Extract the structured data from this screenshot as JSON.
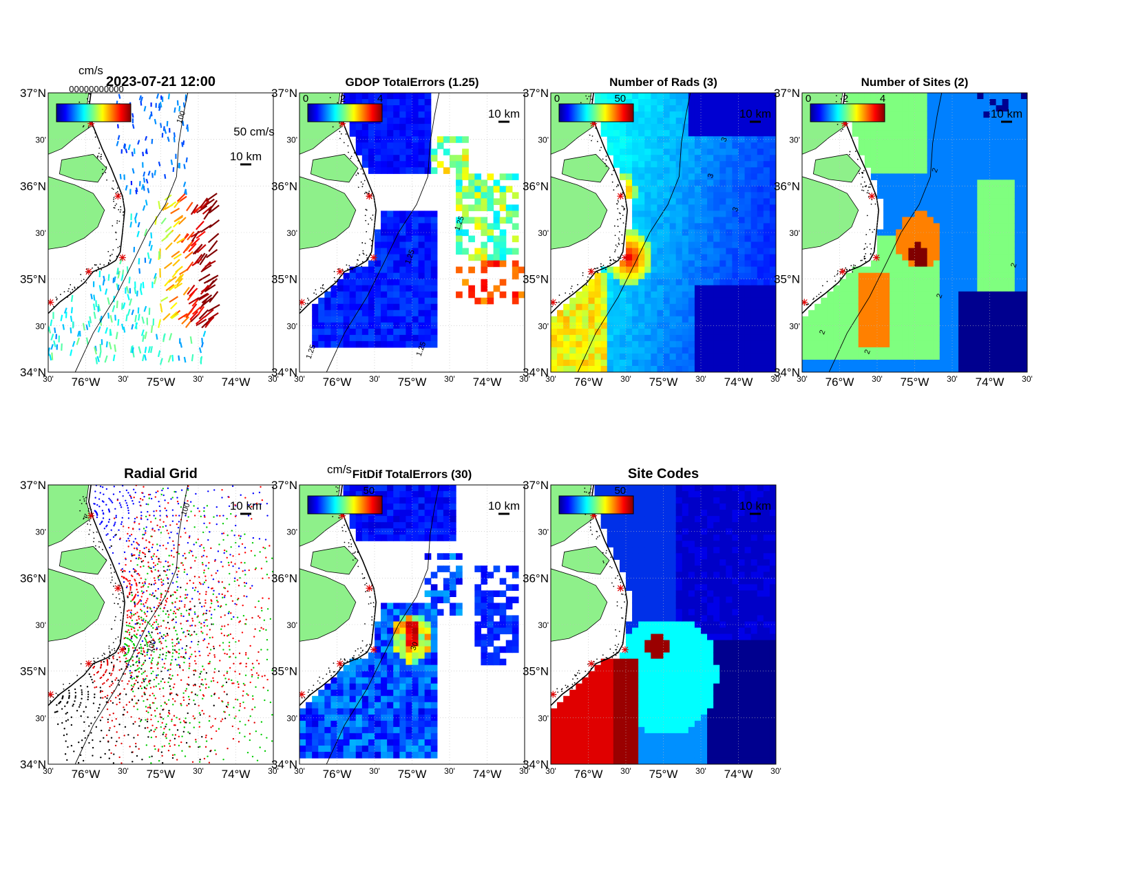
{
  "figure": {
    "panels": [
      {
        "key": "totals",
        "title": "2023-07-21 12:00",
        "colorbar_label": "cm/s",
        "colorbar_ticks": [],
        "scale_label": "50 cm/s",
        "km_label": "10 km",
        "contour_labels": [
          "100"
        ],
        "stack_text": "00000000000"
      },
      {
        "key": "gdop",
        "title": "GDOP TotalErrors (1.25)",
        "colorbar_label": "",
        "colorbar_ticks": [
          "0",
          "2",
          "4"
        ],
        "km_label": "10 km",
        "contour_labels": [
          "1.25",
          "1.25",
          "1.25",
          "1.25"
        ]
      },
      {
        "key": "rads",
        "title": "Number of Rads (3)",
        "colorbar_label": "",
        "colorbar_ticks": [
          "0",
          "50"
        ],
        "km_label": "10 km",
        "contour_labels": [
          "3",
          "3",
          "3"
        ]
      },
      {
        "key": "sites",
        "title": "Number of Sites (2)",
        "colorbar_label": "",
        "colorbar_ticks": [
          "0",
          "2",
          "4"
        ],
        "km_label": "10 km",
        "contour_labels": [
          "2",
          "2",
          "2",
          "2",
          "2"
        ]
      },
      {
        "key": "radial",
        "title": "Radial Grid",
        "colorbar_label": "",
        "colorbar_ticks": [],
        "km_label": "10 km",
        "contour_labels": [
          "100",
          "100"
        ]
      },
      {
        "key": "fitdif",
        "title": "FitDif TotalErrors (30)",
        "colorbar_label": "cm/s",
        "colorbar_ticks": [
          "50"
        ],
        "km_label": "10 km",
        "contour_labels": [
          "30"
        ]
      },
      {
        "key": "codes",
        "title": "Site Codes",
        "colorbar_label": "",
        "colorbar_ticks": [
          "50"
        ],
        "km_label": "10 km",
        "contour_labels": []
      }
    ],
    "axes": {
      "lat_ticks": [
        {
          "value": 37.0,
          "label": "37°N"
        },
        {
          "value": 36.5,
          "label": "30'"
        },
        {
          "value": 36.0,
          "label": "36°N"
        },
        {
          "value": 35.5,
          "label": "30'"
        },
        {
          "value": 35.0,
          "label": "35°N"
        },
        {
          "value": 34.5,
          "label": "30'"
        },
        {
          "value": 34.0,
          "label": "34°N"
        }
      ],
      "lon_ticks": [
        {
          "value": -76.5,
          "label": "30'"
        },
        {
          "value": -76.0,
          "label": "76°W"
        },
        {
          "value": -75.5,
          "label": "30'"
        },
        {
          "value": -75.0,
          "label": "75°W"
        },
        {
          "value": -74.5,
          "label": "30'"
        },
        {
          "value": -74.0,
          "label": "74°W"
        },
        {
          "value": -73.5,
          "label": "30'"
        }
      ],
      "lon_range": [
        -76.5,
        -73.5
      ],
      "lat_range": [
        34.0,
        37.0
      ]
    },
    "colors": {
      "land": "#8ef08a",
      "coast": "#000000",
      "site_marker": "#e00000",
      "grid": "#bbbbbb"
    }
  }
}
